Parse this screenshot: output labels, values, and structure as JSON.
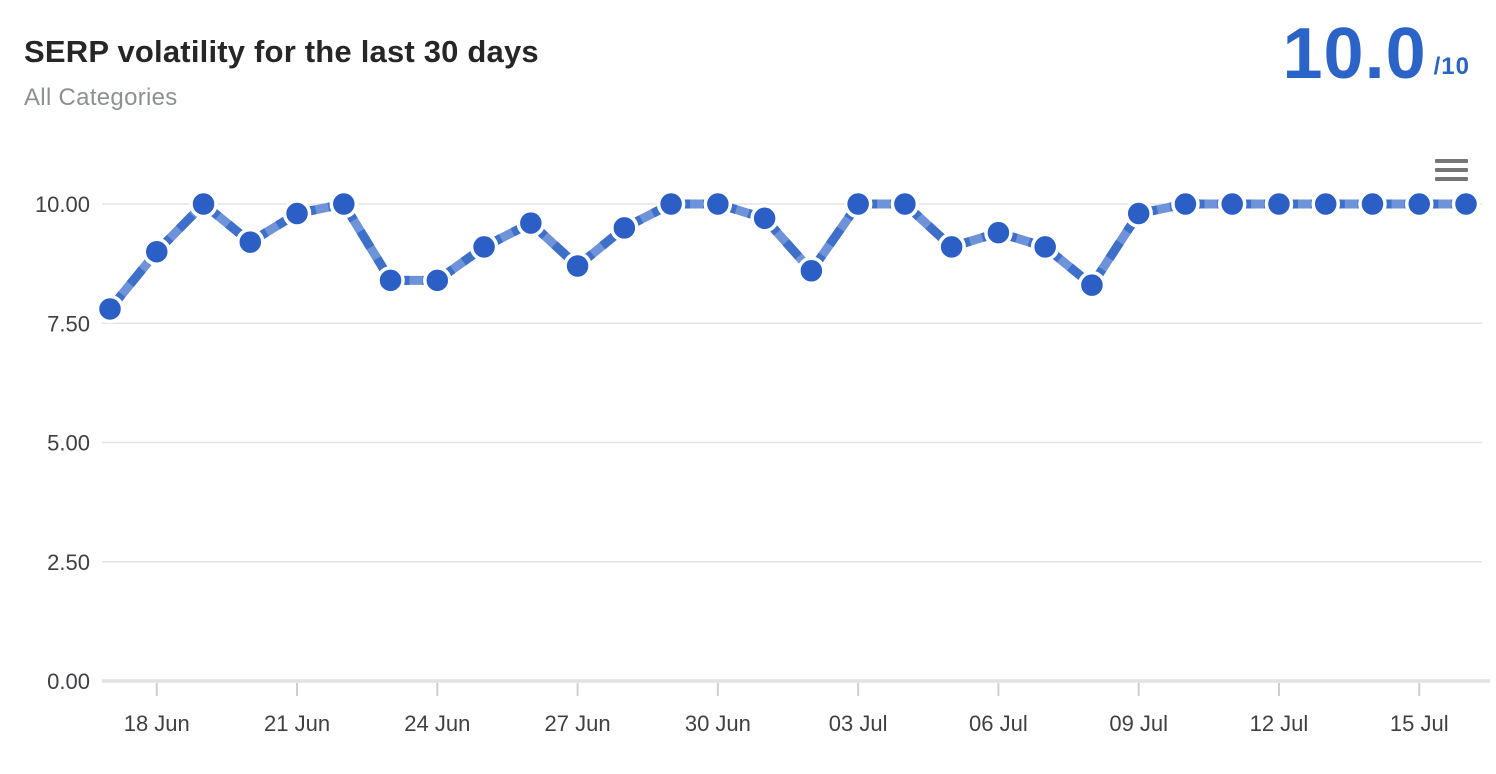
{
  "header": {
    "title": "SERP volatility for the last 30 days",
    "subtitle": "All Categories",
    "score": "10.0",
    "score_suffix": "/10"
  },
  "chart_data": {
    "type": "line",
    "title": "SERP volatility for the last 30 days",
    "series_name": "SERP volatility",
    "line_style": "dashed-with-round-markers",
    "legend": "none",
    "grid": "horizontal",
    "ylim": [
      0,
      10
    ],
    "x": [
      "17 Jun",
      "18 Jun",
      "19 Jun",
      "20 Jun",
      "21 Jun",
      "22 Jun",
      "23 Jun",
      "24 Jun",
      "25 Jun",
      "26 Jun",
      "27 Jun",
      "28 Jun",
      "29 Jun",
      "30 Jun",
      "01 Jul",
      "02 Jul",
      "03 Jul",
      "04 Jul",
      "05 Jul",
      "06 Jul",
      "07 Jul",
      "08 Jul",
      "09 Jul",
      "10 Jul",
      "11 Jul",
      "12 Jul",
      "13 Jul",
      "14 Jul",
      "15 Jul",
      "16 Jul"
    ],
    "values": [
      7.8,
      9.0,
      10.0,
      9.2,
      9.8,
      10.0,
      8.4,
      8.4,
      9.1,
      9.6,
      8.7,
      9.5,
      10.0,
      10.0,
      9.7,
      8.6,
      10.0,
      10.0,
      9.1,
      9.4,
      9.1,
      8.3,
      9.8,
      10.0,
      10.0,
      10.0,
      10.0,
      10.0,
      10.0,
      10.0
    ],
    "y_ticks": [
      {
        "value": 10,
        "label": "10.00"
      },
      {
        "value": 7.5,
        "label": "7.50"
      },
      {
        "value": 5,
        "label": "5.00"
      },
      {
        "value": 2.5,
        "label": "2.50"
      },
      {
        "value": 0,
        "label": "0.00"
      }
    ],
    "x_ticks": [
      {
        "index": 1,
        "label": "18 Jun"
      },
      {
        "index": 4,
        "label": "21 Jun"
      },
      {
        "index": 7,
        "label": "24 Jun"
      },
      {
        "index": 10,
        "label": "27 Jun"
      },
      {
        "index": 13,
        "label": "30 Jun"
      },
      {
        "index": 16,
        "label": "03 Jul"
      },
      {
        "index": 19,
        "label": "06 Jul"
      },
      {
        "index": 22,
        "label": "09 Jul"
      },
      {
        "index": 25,
        "label": "12 Jul"
      },
      {
        "index": 28,
        "label": "15 Jul"
      }
    ],
    "colors": {
      "line": "#3e6fc9",
      "line_dash_gap": "#6e93d9",
      "marker": "#2c5fc5",
      "marker_border": "#ffffff",
      "grid": "#e4e4e4",
      "axis_line": "#e2e2e2",
      "tick": "#cfcfcf",
      "axis_label": "#3f4043",
      "score": "#2b64c6",
      "title": "#262626",
      "subtitle": "#8d9093",
      "menu_icon": "#757575"
    }
  }
}
